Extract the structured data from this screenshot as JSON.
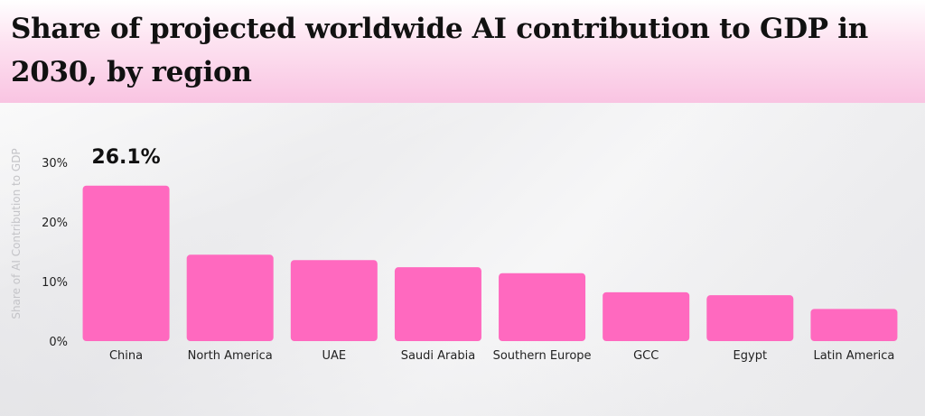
{
  "title": "Share of projected worldwide AI contribution to GDP in 2030, by region",
  "colors": {
    "bar": "#ff69bf",
    "header_pink": "#f9c4e2"
  },
  "chart_data": {
    "type": "bar",
    "title": "Share of projected worldwide AI contribution to GDP in 2030, by region",
    "xlabel": "",
    "ylabel": "Share of AI Contribution to GDP",
    "ylim": [
      0,
      30
    ],
    "yticks": [
      "0%",
      "10%",
      "20%",
      "30%"
    ],
    "grid": false,
    "categories": [
      "China",
      "North America",
      "UAE",
      "Saudi Arabia",
      "Southern Europe",
      "GCC",
      "Egypt",
      "Latin America"
    ],
    "values": [
      26.1,
      14.5,
      13.6,
      12.4,
      11.4,
      8.2,
      7.7,
      5.4
    ],
    "data_labels": [
      {
        "category": "China",
        "text": "26.1%"
      }
    ]
  }
}
